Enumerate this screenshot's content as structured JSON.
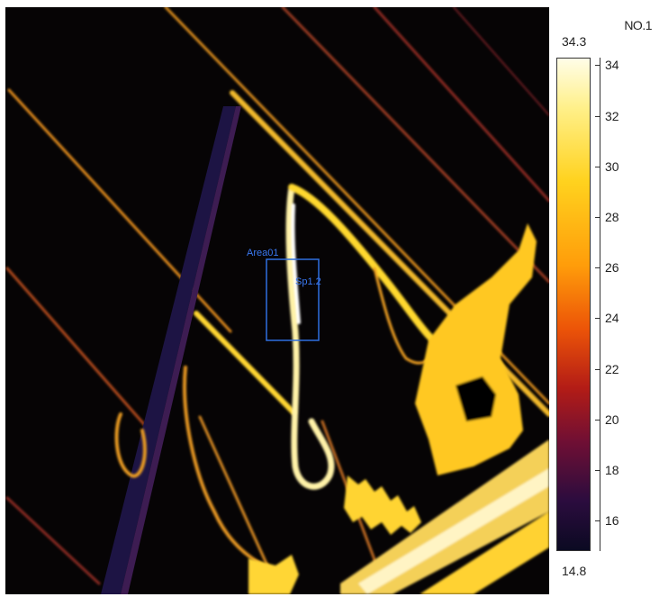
{
  "scale": {
    "title": "NO.1",
    "max_label": "34.3",
    "min_label": "14.8",
    "ticks": [
      {
        "value": 34,
        "label": "34"
      },
      {
        "value": 32,
        "label": "32"
      },
      {
        "value": 30,
        "label": "30"
      },
      {
        "value": 28,
        "label": "28"
      },
      {
        "value": 26,
        "label": "26"
      },
      {
        "value": 24,
        "label": "24"
      },
      {
        "value": 22,
        "label": "22"
      },
      {
        "value": 20,
        "label": "20"
      },
      {
        "value": 18,
        "label": "18"
      },
      {
        "value": 16,
        "label": "16"
      }
    ],
    "palette": [
      "#0b0a22",
      "#2b0c3e",
      "#6f0f34",
      "#b31c16",
      "#ec5408",
      "#ff9d0a",
      "#ffd21e",
      "#fff08a",
      "#fffde8"
    ]
  },
  "roi": {
    "area_label": "Area01",
    "spot_label": "Sp1.2",
    "color": "#3a78f0"
  }
}
